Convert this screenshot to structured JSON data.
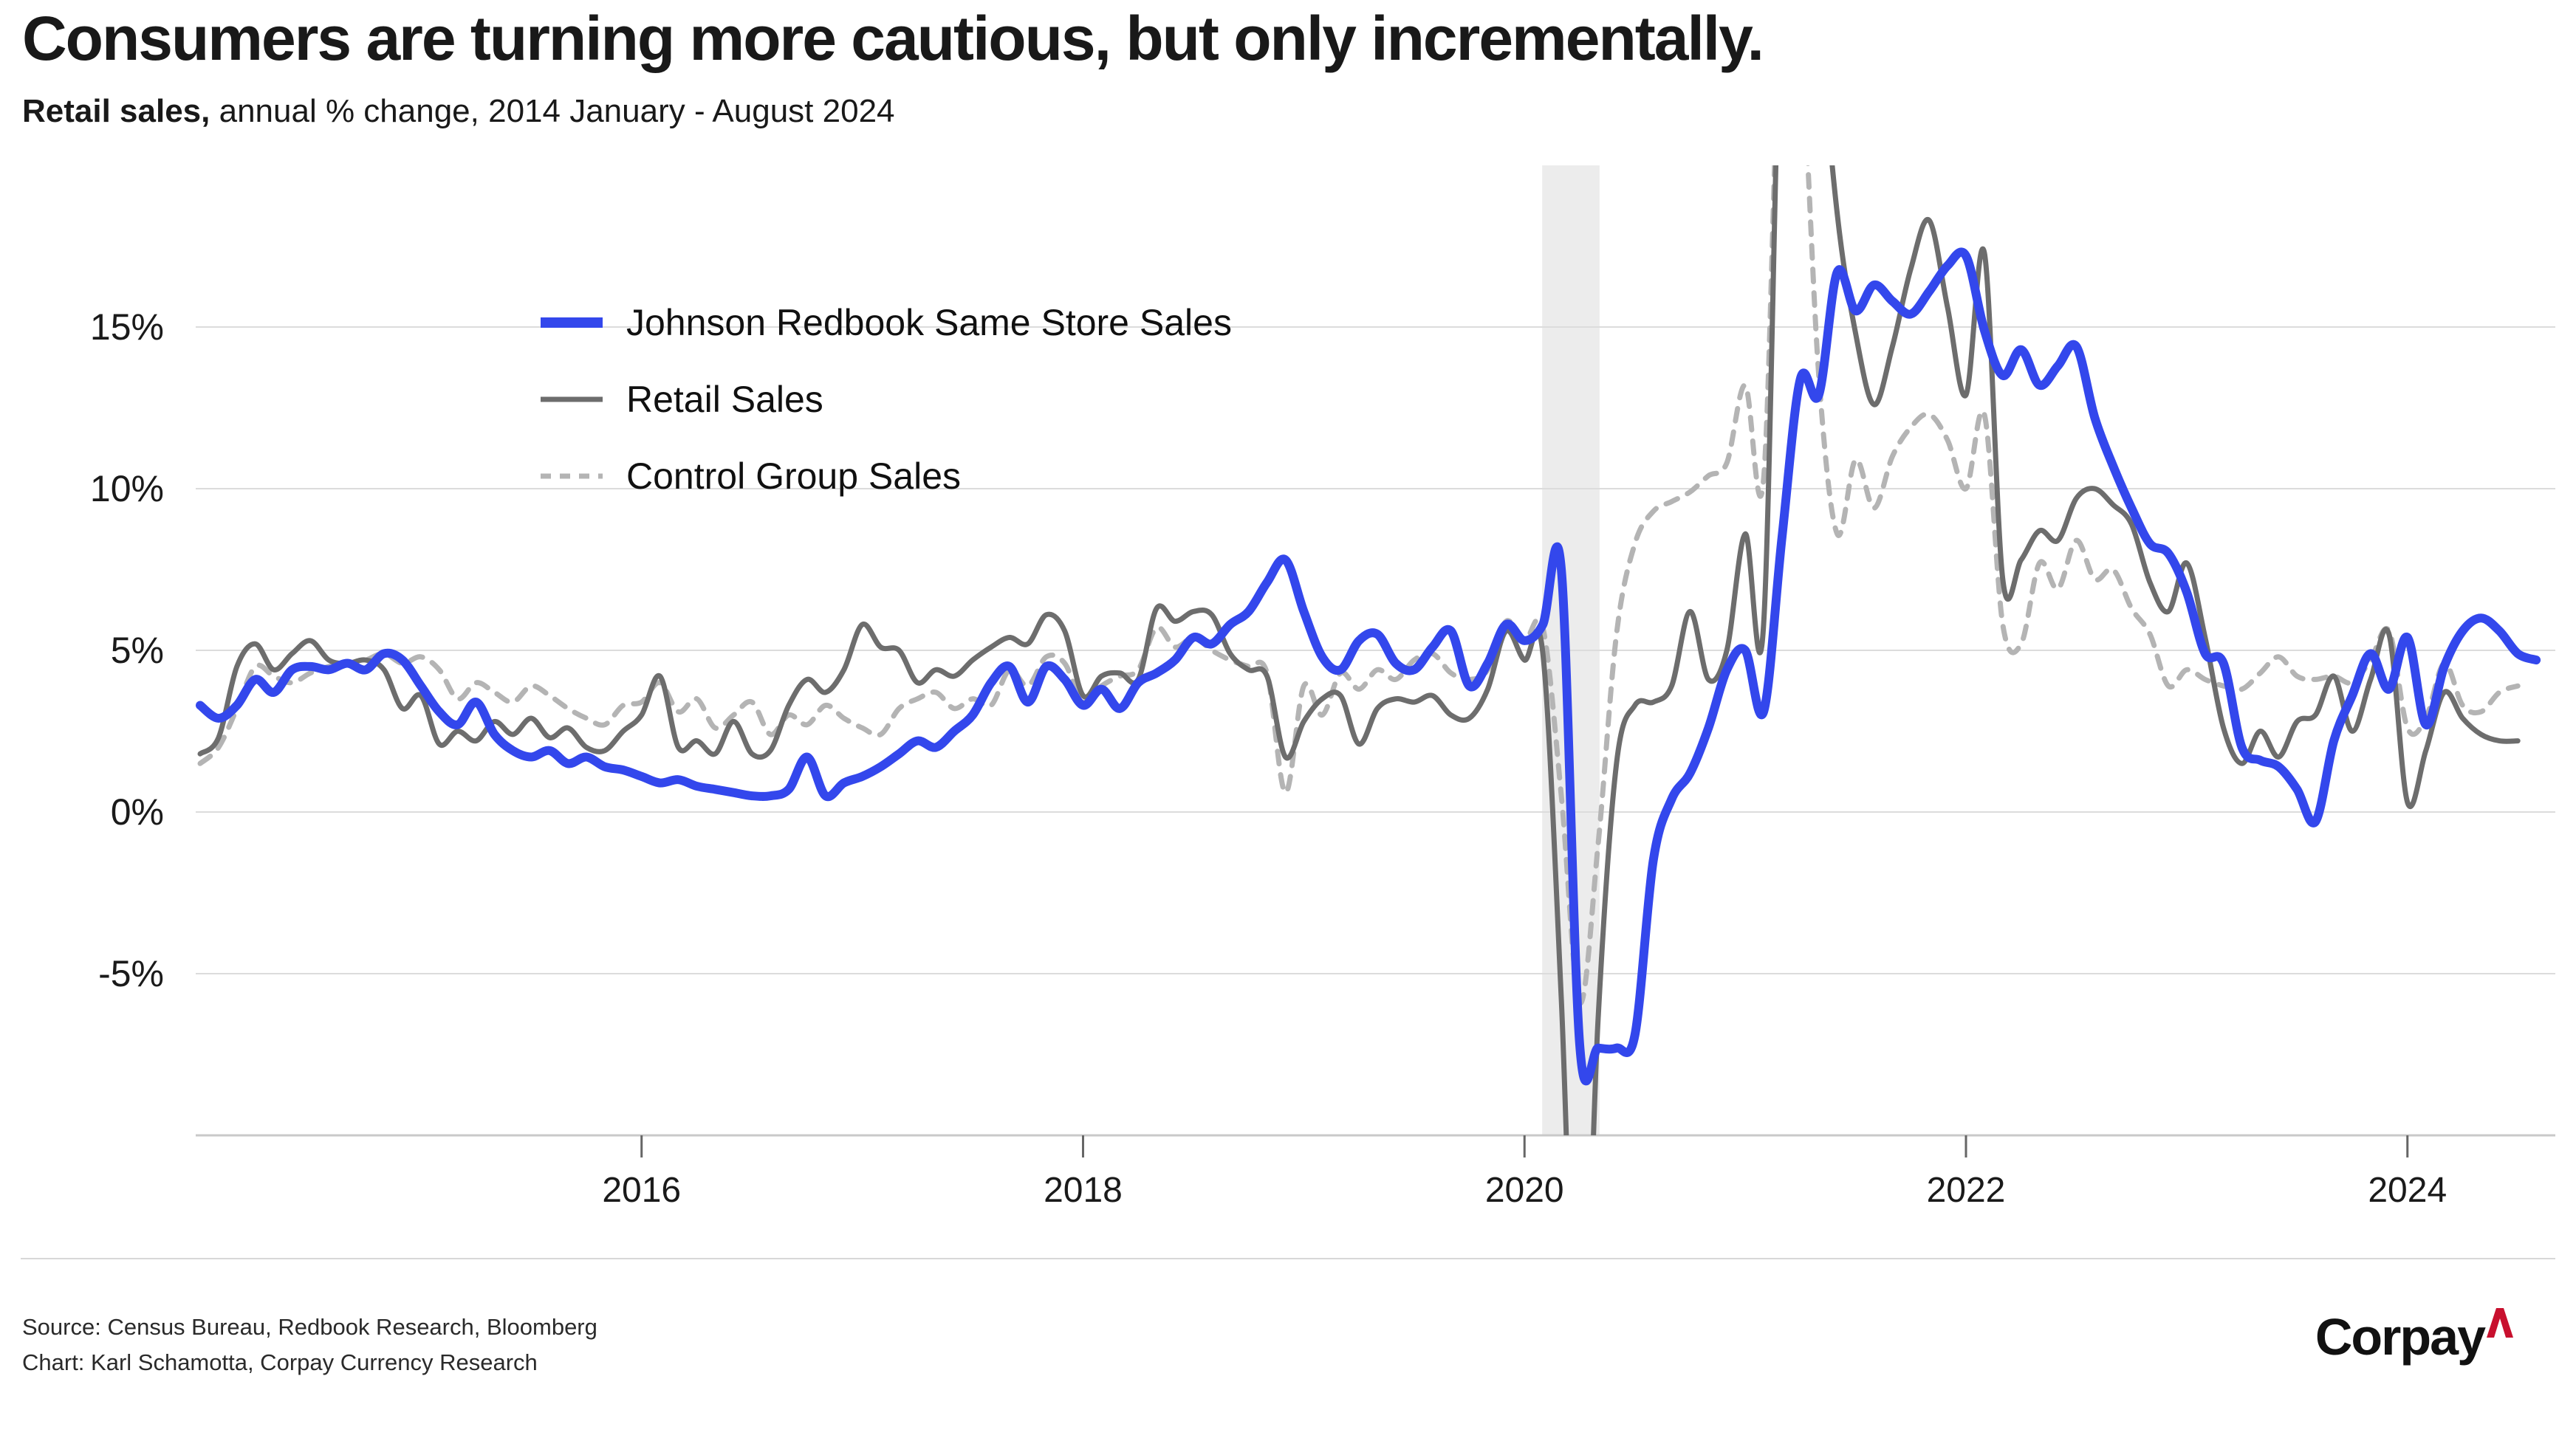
{
  "header": {
    "title": "Consumers are turning more cautious, but only incrementally.",
    "subtitle_bold": "Retail sales,",
    "subtitle_rest": " annual % change, 2014 January - August 2024"
  },
  "legend": [
    {
      "label": "Johnson Redbook Same Store Sales",
      "color": "#3347ec",
      "style": "solid",
      "thickness": 14
    },
    {
      "label": "Retail Sales",
      "color": "#6d6d6d",
      "style": "solid",
      "thickness": 7
    },
    {
      "label": "Control Group Sales",
      "color": "#b4b4b4",
      "style": "dashed",
      "thickness": 7
    }
  ],
  "footer": {
    "source_line": "Source: Census Bureau, Redbook Research, Bloomberg",
    "credit_line": "Chart: Karl Schamotta, Corpay Currency Research",
    "logo_text": "Corpay",
    "logo_caret_color": "#c8102e"
  },
  "chart_data": {
    "type": "line",
    "title": "Consumers are turning more cautious, but only incrementally.",
    "subtitle": "Retail sales, annual % change, 2014 January - August 2024",
    "xlabel": "",
    "ylabel": "annual % change",
    "x_start": "2014-01",
    "x_end": "2024-08",
    "x_step": "1 month",
    "xlim": [
      2013.98,
      2024.67
    ],
    "ylim": [
      -10,
      20
    ],
    "grid": "horizontal",
    "legend_position": "inside top-left",
    "x_ticks": [
      {
        "v": 2016,
        "label": "2016"
      },
      {
        "v": 2018,
        "label": "2018"
      },
      {
        "v": 2020,
        "label": "2020"
      },
      {
        "v": 2022,
        "label": "2022"
      },
      {
        "v": 2024,
        "label": "2024"
      }
    ],
    "y_ticks": [
      {
        "v": 15,
        "label": "15%"
      },
      {
        "v": 10,
        "label": "10%"
      },
      {
        "v": 5,
        "label": "5%"
      },
      {
        "v": 0,
        "label": "0%"
      },
      {
        "v": -5,
        "label": "-5%"
      }
    ],
    "recession_band": {
      "from": 2020.08,
      "to": 2020.34,
      "color": "#ececec"
    },
    "colors": {
      "grid": "#dcdcdc",
      "axis": "#c9c9c9",
      "tick": "#666666",
      "tick_label": "#1a1a1a"
    },
    "series": [
      {
        "name": "Control Group Sales",
        "color": "#b4b4b4",
        "width": 7,
        "dash": "17 15",
        "start_year": 2014.0,
        "values": [
          1.5,
          2.0,
          3.2,
          4.5,
          4.2,
          4.0,
          4.3,
          4.5,
          4.6,
          4.7,
          4.9,
          4.6,
          4.8,
          4.4,
          3.5,
          4.0,
          3.7,
          3.4,
          3.9,
          3.6,
          3.2,
          2.9,
          2.7,
          3.3,
          3.4,
          4.0,
          3.1,
          3.5,
          2.6,
          3.0,
          3.4,
          2.4,
          3.0,
          2.7,
          3.3,
          2.9,
          2.6,
          2.4,
          3.2,
          3.5,
          3.7,
          3.2,
          3.5,
          3.3,
          4.4,
          3.9,
          4.8,
          4.6,
          3.4,
          3.9,
          4.2,
          4.4,
          5.7,
          5.1,
          5.4,
          5.0,
          4.7,
          4.5,
          4.3,
          0.6,
          3.9,
          3.0,
          4.3,
          3.8,
          4.4,
          4.1,
          4.7,
          4.9,
          4.3,
          4.1,
          4.4,
          5.9,
          5.3,
          5.7,
          0.5,
          -5.9,
          -1.0,
          5.5,
          8.3,
          9.3,
          9.6,
          9.9,
          10.4,
          10.8,
          13.2,
          10.3,
          26.0,
          24.0,
          13.5,
          8.6,
          10.9,
          9.4,
          11.0,
          11.9,
          12.3,
          11.5,
          10.0,
          12.3,
          5.8,
          5.2,
          7.7,
          6.9,
          8.4,
          7.2,
          7.5,
          6.3,
          5.5,
          3.9,
          4.4,
          4.1,
          3.9,
          3.8,
          4.3,
          4.8,
          4.2,
          4.1,
          4.2,
          4.0,
          4.7,
          5.6,
          2.6,
          2.9,
          4.6,
          3.3,
          3.1,
          3.7,
          3.9
        ]
      },
      {
        "name": "Retail Sales",
        "color": "#6d6d6d",
        "width": 7,
        "dash": null,
        "start_year": 2014.0,
        "values": [
          1.8,
          2.3,
          4.5,
          5.2,
          4.4,
          4.9,
          5.3,
          4.7,
          4.6,
          4.7,
          4.4,
          3.2,
          3.6,
          2.1,
          2.5,
          2.2,
          2.8,
          2.4,
          2.9,
          2.3,
          2.6,
          2.0,
          1.9,
          2.5,
          3.0,
          4.2,
          2.0,
          2.2,
          1.8,
          2.8,
          1.8,
          1.9,
          3.3,
          4.1,
          3.7,
          4.4,
          5.8,
          5.1,
          5.0,
          4.0,
          4.4,
          4.2,
          4.7,
          5.1,
          5.4,
          5.2,
          6.1,
          5.6,
          3.6,
          4.2,
          4.3,
          4.1,
          6.3,
          5.9,
          6.2,
          6.1,
          4.9,
          4.4,
          4.2,
          1.7,
          2.8,
          3.5,
          3.6,
          2.1,
          3.2,
          3.5,
          3.4,
          3.6,
          3.0,
          2.9,
          3.8,
          5.6,
          4.7,
          4.9,
          -5.8,
          -19.5,
          -6.4,
          1.5,
          3.3,
          3.4,
          3.9,
          6.2,
          4.1,
          5.0,
          8.6,
          5.8,
          27.0,
          34.0,
          25.0,
          18.5,
          14.8,
          12.6,
          14.4,
          16.8,
          18.3,
          15.6,
          12.9,
          17.3,
          7.2,
          7.8,
          8.7,
          8.4,
          9.7,
          10.0,
          9.5,
          8.9,
          7.1,
          6.2,
          7.7,
          5.4,
          2.6,
          1.5,
          2.5,
          1.7,
          2.8,
          3.0,
          4.2,
          2.5,
          4.1,
          5.5,
          0.3,
          1.9,
          3.7,
          2.9,
          2.4,
          2.2,
          2.2
        ]
      },
      {
        "name": "Johnson Redbook Same Store Sales",
        "color": "#3347ec",
        "width": 12,
        "dash": null,
        "start_year": 2014.0,
        "values": [
          3.3,
          2.9,
          3.3,
          4.1,
          3.7,
          4.4,
          4.5,
          4.4,
          4.6,
          4.4,
          4.9,
          4.7,
          3.9,
          3.1,
          2.7,
          3.4,
          2.4,
          1.9,
          1.7,
          1.9,
          1.5,
          1.7,
          1.4,
          1.3,
          1.1,
          0.9,
          1.0,
          0.8,
          0.7,
          0.6,
          0.5,
          0.5,
          0.7,
          1.7,
          0.5,
          0.9,
          1.1,
          1.4,
          1.8,
          2.2,
          2.0,
          2.5,
          3.0,
          4.0,
          4.5,
          3.4,
          4.5,
          4.1,
          3.3,
          3.8,
          3.2,
          4.0,
          4.3,
          4.7,
          5.4,
          5.2,
          5.8,
          6.2,
          7.1,
          7.8,
          6.2,
          4.8,
          4.4,
          5.3,
          5.5,
          4.6,
          4.4,
          5.1,
          5.6,
          3.9,
          4.6,
          5.8,
          5.3,
          5.8,
          7.5,
          -7.2,
          -7.3,
          -7.3,
          -6.9,
          -1.5,
          0.4,
          1.2,
          2.6,
          4.4,
          5.0,
          3.1,
          8.5,
          13.4,
          12.9,
          16.7,
          15.5,
          16.3,
          15.8,
          15.4,
          16.1,
          16.9,
          17.2,
          14.9,
          13.5,
          14.3,
          13.2,
          13.8,
          14.4,
          12.2,
          10.7,
          9.4,
          8.3,
          8.0,
          6.8,
          4.9,
          4.6,
          2.0,
          1.6,
          1.4,
          0.7,
          -0.3,
          2.2,
          3.6,
          4.9,
          3.8,
          5.4,
          2.7,
          4.5,
          5.6,
          6.0,
          5.6,
          4.9,
          4.7
        ]
      }
    ]
  }
}
